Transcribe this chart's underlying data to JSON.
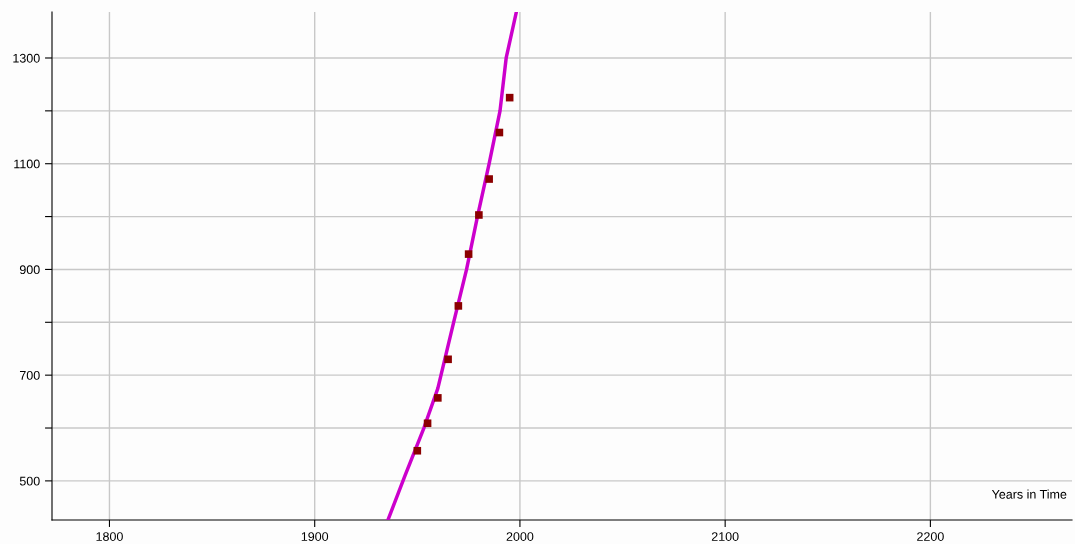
{
  "chart_data": {
    "type": "scatter",
    "xlabel": "Years in Time",
    "series": [
      {
        "color": "#8b0000",
        "marker": "square",
        "x": [
          1950,
          1955,
          1960,
          1965,
          1970,
          1975,
          1980,
          1985,
          1990,
          1995
        ],
        "values": [
          557,
          609,
          657,
          730,
          831,
          929,
          1003,
          1071,
          1159,
          1225
        ]
      },
      {
        "type": "line",
        "color": "#cc00cc",
        "marker": "none",
        "line_style": "solid",
        "x": [
          1935.9,
          1944,
          1953.2,
          1960,
          1967.7,
          1974,
          1979.3,
          1985,
          1990.3,
          1993.3,
          1998.2
        ],
        "values": [
          428,
          510,
          600,
          675,
          800,
          900,
          1000,
          1100,
          1200,
          1300,
          1386
        ]
      }
    ],
    "xlim": [
      1772,
      2269
    ],
    "ylim": [
      426,
      1387
    ],
    "xticks": [
      1800,
      1900,
      2000,
      2100,
      2200
    ],
    "yticks": [
      500,
      {
        "value": 600,
        "label": null
      },
      700,
      {
        "value": 800,
        "label": null
      },
      900,
      {
        "value": 1000,
        "label": null
      },
      1100,
      {
        "value": 1200,
        "label": null
      },
      1300
    ],
    "grid": true,
    "legend": false
  }
}
